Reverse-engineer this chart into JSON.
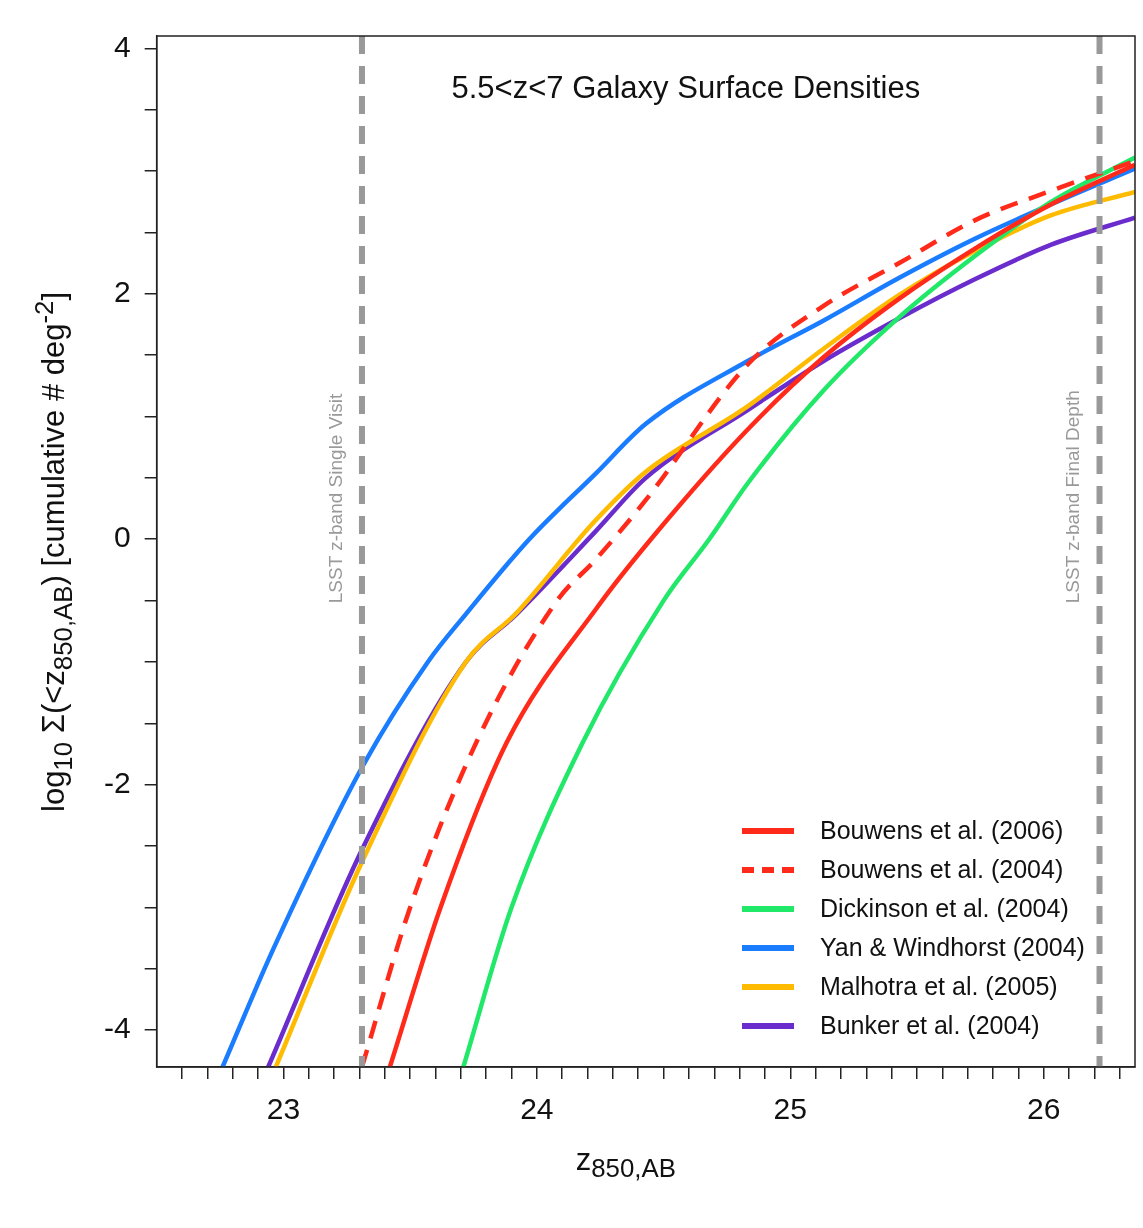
{
  "chart_data": {
    "type": "line",
    "title": "5.5<z<7 Galaxy Surface Densities",
    "xlabel": "z$_{850,AB}$",
    "ylabel": "log$_{10}$ Σ(<z$_{850,AB}$) [cumulative # deg$^{-2}$]",
    "xlim": [
      22.5,
      26.36
    ],
    "ylim": [
      -4.3,
      4.1
    ],
    "xticks": [
      {
        "value": 22.6,
        "label": null
      },
      {
        "value": 22.7,
        "label": null
      },
      {
        "value": 22.8,
        "label": null
      },
      {
        "value": 22.9,
        "label": null
      },
      23,
      {
        "value": 23.1,
        "label": null
      },
      {
        "value": 23.2,
        "label": null
      },
      {
        "value": 23.3,
        "label": null
      },
      {
        "value": 23.4,
        "label": null
      },
      {
        "value": 23.5,
        "label": null
      },
      {
        "value": 23.6,
        "label": null
      },
      {
        "value": 23.7,
        "label": null
      },
      {
        "value": 23.8,
        "label": null
      },
      {
        "value": 23.9,
        "label": null
      },
      24,
      {
        "value": 24.1,
        "label": null
      },
      {
        "value": 24.2,
        "label": null
      },
      {
        "value": 24.3,
        "label": null
      },
      {
        "value": 24.4,
        "label": null
      },
      {
        "value": 24.5,
        "label": null
      },
      {
        "value": 24.6,
        "label": null
      },
      {
        "value": 24.7,
        "label": null
      },
      {
        "value": 24.8,
        "label": null
      },
      {
        "value": 24.9,
        "label": null
      },
      25,
      {
        "value": 25.1,
        "label": null
      },
      {
        "value": 25.2,
        "label": null
      },
      {
        "value": 25.3,
        "label": null
      },
      {
        "value": 25.4,
        "label": null
      },
      {
        "value": 25.5,
        "label": null
      },
      {
        "value": 25.6,
        "label": null
      },
      {
        "value": 25.7,
        "label": null
      },
      {
        "value": 25.8,
        "label": null
      },
      {
        "value": 25.9,
        "label": null
      },
      26,
      {
        "value": 26.1,
        "label": null
      },
      {
        "value": 26.2,
        "label": null
      },
      {
        "value": 26.3,
        "label": null
      }
    ],
    "yticks": [
      -4,
      {
        "value": -3.5,
        "label": null
      },
      {
        "value": -3,
        "label": null
      },
      {
        "value": -2.5,
        "label": null
      },
      -2,
      {
        "value": -1.5,
        "label": null
      },
      {
        "value": -1,
        "label": null
      },
      {
        "value": -0.5,
        "label": null
      },
      0,
      {
        "value": 0.5,
        "label": null
      },
      {
        "value": 1,
        "label": null
      },
      {
        "value": 1.5,
        "label": null
      },
      2,
      {
        "value": 2.5,
        "label": null
      },
      {
        "value": 3,
        "label": null
      },
      {
        "value": 3.5,
        "label": null
      },
      4
    ],
    "legend": "bottom right",
    "ref_lines": [
      {
        "axis": "x",
        "value": 23.31,
        "label": "LSST z-band Single Visit",
        "color": "#999999",
        "line_style": "dashed"
      },
      {
        "axis": "x",
        "value": 26.22,
        "label": "LSST z-band Final Depth",
        "color": "#999999",
        "line_style": "dashed"
      }
    ],
    "series": [
      {
        "name": "Bouwens et al. (2006)",
        "color": "#ff2a1a",
        "x": [
          23.42,
          23.62,
          23.88,
          24.24,
          24.45,
          24.83,
          25.13,
          25.43,
          25.73,
          26.03,
          26.36
        ],
        "values": [
          -4.3,
          -3.0,
          -1.66,
          -0.55,
          0,
          0.89,
          1.48,
          1.96,
          2.37,
          2.73,
          3.05
        ]
      },
      {
        "name": "Bouwens et al. (2004)",
        "color": "#ff2a1a",
        "line_style": "dashed",
        "x": [
          23.31,
          23.5,
          23.76,
          24.08,
          24.23,
          24.43,
          24.83,
          25.13,
          25.43,
          25.73,
          26.03,
          26.36
        ],
        "values": [
          -4.3,
          -3.0,
          -1.66,
          -0.5,
          -0.17,
          0.32,
          1.42,
          1.9,
          2.25,
          2.6,
          2.84,
          3.08
        ]
      },
      {
        "name": "Dickinson et al. (2004)",
        "color": "#22e86a",
        "x": [
          23.71,
          23.9,
          24.18,
          24.5,
          24.68,
          24.83,
          25.13,
          25.43,
          25.73,
          26.03,
          26.36
        ],
        "values": [
          -4.3,
          -3.0,
          -1.66,
          -0.5,
          0,
          0.45,
          1.21,
          1.81,
          2.31,
          2.75,
          3.11
        ]
      },
      {
        "name": "Yan & Windhorst (2004)",
        "color": "#1a7cff",
        "x": [
          22.76,
          22.96,
          23.31,
          23.57,
          23.72,
          23.97,
          24.23,
          24.43,
          24.83,
          25.13,
          25.43,
          25.73,
          26.03,
          26.36
        ],
        "values": [
          -4.3,
          -3.34,
          -1.86,
          -1.0,
          -0.61,
          0,
          0.53,
          0.94,
          1.45,
          1.78,
          2.13,
          2.45,
          2.73,
          3.02
        ]
      },
      {
        "name": "Malhotra et al. (2005)",
        "color": "#ffbb00",
        "x": [
          22.97,
          23.31,
          23.72,
          23.92,
          24.23,
          24.43,
          24.83,
          25.13,
          25.43,
          25.73,
          26.03,
          26.36
        ],
        "values": [
          -4.3,
          -2.63,
          -1.0,
          -0.6,
          0.15,
          0.55,
          1.08,
          1.55,
          1.99,
          2.35,
          2.64,
          2.83
        ]
      },
      {
        "name": "Bunker et al. (2004)",
        "color": "#6a2ccc",
        "x": [
          22.94,
          23.31,
          23.72,
          23.92,
          24.23,
          24.43,
          24.83,
          25.13,
          25.43,
          25.73,
          26.03,
          26.36
        ],
        "values": [
          -4.3,
          -2.53,
          -1.0,
          -0.61,
          0.06,
          0.5,
          1.05,
          1.45,
          1.8,
          2.12,
          2.4,
          2.62
        ]
      }
    ]
  }
}
